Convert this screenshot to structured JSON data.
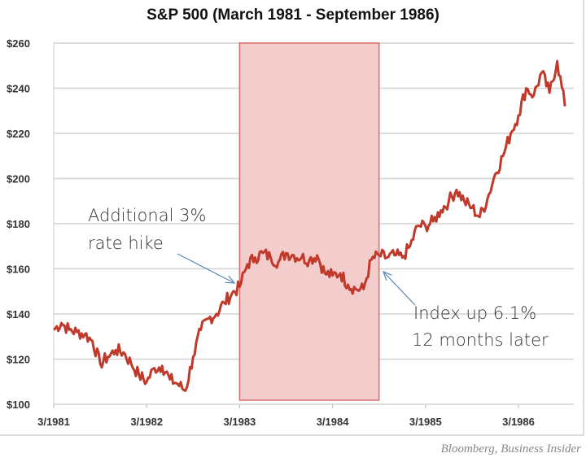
{
  "chart_data": {
    "type": "line",
    "title": "S&P 500 (March 1981 -  September 1986)",
    "xlabel": "",
    "ylabel": "",
    "ylim": [
      100,
      260
    ],
    "yticks": [
      "$100",
      "$120",
      "$140",
      "$160",
      "$180",
      "$200",
      "$220",
      "$240",
      "$260"
    ],
    "ytick_values": [
      100,
      120,
      140,
      160,
      180,
      200,
      220,
      240,
      260
    ],
    "xticks": [
      "3/1981",
      "3/1982",
      "3/1983",
      "3/1984",
      "3/1985",
      "3/1986"
    ],
    "grid": true,
    "line_color": "#c0392b",
    "shaded_region": {
      "from": "1983-03",
      "to": "1984-09",
      "color": "#f3cccc",
      "border": "#e06a6a"
    },
    "series": [
      {
        "x": [
          "1981-03",
          "1981-04",
          "1981-05",
          "1981-06",
          "1981-07",
          "1981-08",
          "1981-09",
          "1981-10",
          "1981-11",
          "1981-12",
          "1982-01",
          "1982-02",
          "1982-03",
          "1982-04",
          "1982-05",
          "1982-06",
          "1982-07",
          "1982-08",
          "1982-09",
          "1982-10",
          "1982-11",
          "1982-12",
          "1983-01",
          "1983-02",
          "1983-03",
          "1983-04",
          "1983-05",
          "1983-06",
          "1983-07",
          "1983-08",
          "1983-09",
          "1983-10",
          "1983-11",
          "1983-12",
          "1984-01",
          "1984-02",
          "1984-03",
          "1984-04",
          "1984-05",
          "1984-06",
          "1984-07",
          "1984-08",
          "1984-09",
          "1984-10",
          "1984-11",
          "1984-12",
          "1985-01",
          "1985-02",
          "1985-03",
          "1985-04",
          "1985-05",
          "1985-06",
          "1985-07",
          "1985-08",
          "1985-09",
          "1985-10",
          "1985-11",
          "1985-12",
          "1986-01",
          "1986-02",
          "1986-03",
          "1986-04",
          "1986-05",
          "1986-06",
          "1986-07",
          "1986-08",
          "1986-09"
        ],
        "values": [
          133,
          136,
          133,
          132,
          131,
          128,
          118,
          121,
          124,
          123,
          118,
          113,
          110,
          116,
          117,
          111,
          109,
          106,
          121,
          133,
          138,
          140,
          145,
          149,
          152,
          162,
          165,
          167,
          165,
          163,
          167,
          166,
          165,
          164,
          166,
          158,
          157,
          158,
          153,
          151,
          151,
          164,
          166,
          165,
          166,
          165,
          170,
          179,
          179,
          181,
          186,
          190,
          195,
          190,
          187,
          183,
          191,
          202,
          210,
          220,
          228,
          240,
          237,
          247,
          238,
          252,
          232
        ]
      }
    ],
    "annotations": [
      {
        "lines": [
          "Additional 3%",
          "rate hike"
        ],
        "points_to": "1983-03"
      },
      {
        "lines": [
          "Index up 6.1%",
          "12 months later"
        ],
        "points_to": "1984-09"
      }
    ]
  },
  "source": "Bloomberg, Business Insider"
}
